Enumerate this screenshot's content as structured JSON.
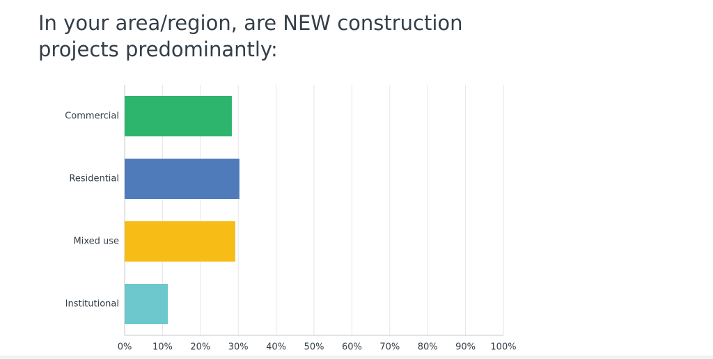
{
  "chart_data": {
    "type": "hbar",
    "title": "In your area/region, are NEW construction projects predominantly:",
    "categories": [
      "Commercial",
      "Residential",
      "Mixed use",
      "Institutional"
    ],
    "values": [
      28.3,
      30.3,
      29.2,
      11.4
    ],
    "colors": [
      "#2db56e",
      "#4f7bbb",
      "#f7bd16",
      "#6cc8cc"
    ],
    "xlim": [
      0,
      100
    ],
    "xticks": [
      {
        "value": 0,
        "label": "0%"
      },
      {
        "value": 10,
        "label": "10%"
      },
      {
        "value": 20,
        "label": "20%"
      },
      {
        "value": 30,
        "label": "30%"
      },
      {
        "value": 40,
        "label": "40%"
      },
      {
        "value": 50,
        "label": "50%"
      },
      {
        "value": 60,
        "label": "60%"
      },
      {
        "value": 70,
        "label": "70%"
      },
      {
        "value": 80,
        "label": "80%"
      },
      {
        "value": 90,
        "label": "90%"
      },
      {
        "value": 100,
        "label": "100%"
      }
    ],
    "grid": true
  }
}
